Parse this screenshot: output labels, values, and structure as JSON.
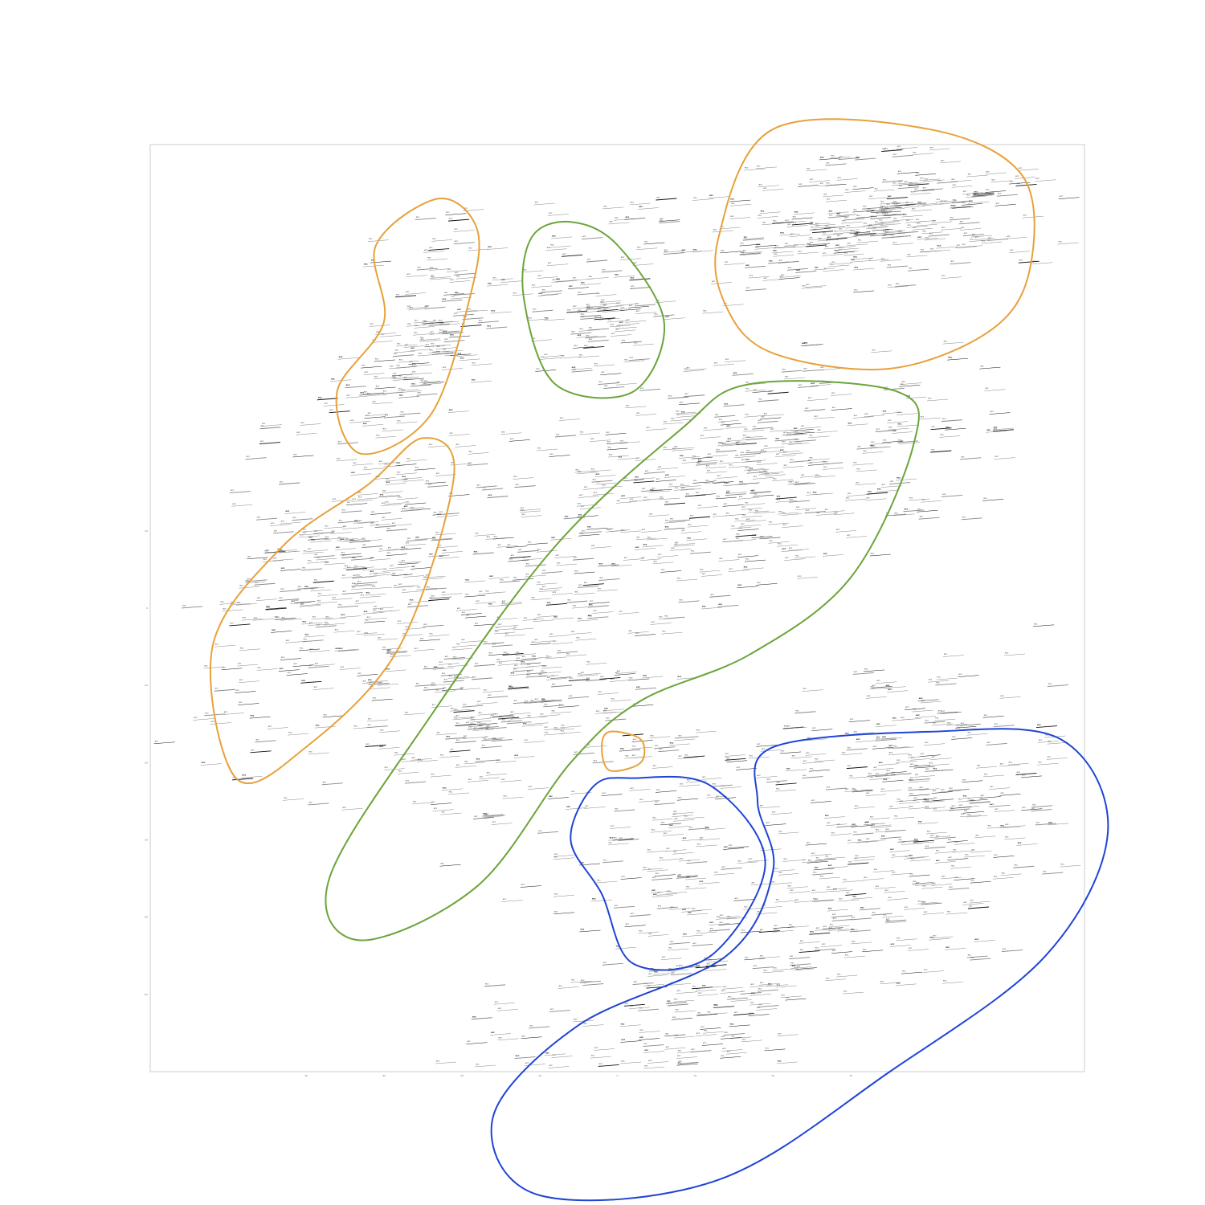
{
  "chart_data": {
    "type": "scatter",
    "title": "",
    "xlabel": "",
    "ylabel": "",
    "xlim": [
      -60,
      60
    ],
    "ylim": [
      -60,
      60
    ],
    "x_ticks": [
      -40,
      -30,
      -20,
      -10,
      0,
      10,
      20,
      30
    ],
    "y_ticks": [
      -50,
      -40,
      -30,
      -20,
      -10,
      0,
      10
    ],
    "grid": false,
    "point_label": "ecc",
    "colors": {
      "orange": "#e8a13a",
      "green": "#6aa53a",
      "blue": "#1f44d6",
      "frame": "#cccccc",
      "text": "#333333"
    },
    "clusters": [
      {
        "color": "orange",
        "cx": 32,
        "cy": 50,
        "sx": 12,
        "sy": 4,
        "angle": 8,
        "n": 260
      },
      {
        "color": "orange",
        "cx": -26,
        "cy": 36,
        "sx": 4,
        "sy": 8,
        "angle": -15,
        "n": 110
      },
      {
        "color": "green",
        "cx": -4,
        "cy": 39,
        "sx": 5,
        "sy": 6,
        "angle": 0,
        "n": 100
      },
      {
        "color": "orange",
        "cx": -35,
        "cy": 5,
        "sx": 8,
        "sy": 14,
        "angle": -25,
        "n": 300
      },
      {
        "color": "green",
        "cx": 18,
        "cy": 17,
        "sx": 14,
        "sy": 7,
        "angle": 12,
        "n": 320
      },
      {
        "color": "green",
        "cx": -14,
        "cy": -8,
        "sx": 7,
        "sy": 12,
        "angle": -30,
        "n": 260
      },
      {
        "color": "orange",
        "cx": 1,
        "cy": -18,
        "sx": 1,
        "sy": 1,
        "angle": 0,
        "n": 4
      },
      {
        "color": "blue",
        "cx": 5,
        "cy": -29,
        "sx": 6,
        "sy": 9,
        "angle": 0,
        "n": 100
      },
      {
        "color": "blue",
        "cx": 38,
        "cy": -27,
        "sx": 11,
        "sy": 9,
        "angle": 15,
        "n": 300
      },
      {
        "color": "blue",
        "cx": 5,
        "cy": -54,
        "sx": 18,
        "sy": 7,
        "angle": 30,
        "n": 240
      }
    ],
    "outlines": [
      {
        "color": "orange",
        "path": [
          [
            20,
            62
          ],
          [
            40,
            62
          ],
          [
            52,
            56
          ],
          [
            53,
            44
          ],
          [
            48,
            36
          ],
          [
            35,
            31
          ],
          [
            20,
            33
          ],
          [
            14,
            39
          ],
          [
            13,
            48
          ]
        ]
      },
      {
        "color": "orange",
        "path": [
          [
            -23,
            53
          ],
          [
            -18,
            49
          ],
          [
            -19,
            40
          ],
          [
            -24,
            25
          ],
          [
            -33,
            20
          ],
          [
            -36,
            28
          ],
          [
            -30,
            37
          ],
          [
            -31,
            47
          ]
        ]
      },
      {
        "color": "green",
        "path": [
          [
            -6,
            50
          ],
          [
            0,
            47
          ],
          [
            6,
            37
          ],
          [
            2,
            28
          ],
          [
            -8,
            29
          ],
          [
            -12,
            40
          ],
          [
            -11,
            48
          ]
        ]
      },
      {
        "color": "orange",
        "path": [
          [
            -25,
            22
          ],
          [
            -21,
            17
          ],
          [
            -28,
            -5
          ],
          [
            -40,
            -18
          ],
          [
            -49,
            -22
          ],
          [
            -52,
            -5
          ],
          [
            -43,
            8
          ],
          [
            -32,
            16
          ]
        ]
      },
      {
        "color": "green",
        "path": [
          [
            17,
            29
          ],
          [
            36,
            28
          ],
          [
            38,
            21
          ],
          [
            30,
            4
          ],
          [
            17,
            -6
          ],
          [
            3,
            -12
          ],
          [
            -6,
            -20
          ],
          [
            -18,
            -36
          ],
          [
            -33,
            -43
          ],
          [
            -37,
            -35
          ],
          [
            -24,
            -14
          ],
          [
            -8,
            8
          ],
          [
            8,
            23
          ]
        ]
      },
      {
        "color": "orange",
        "path": [
          [
            -1,
            -16
          ],
          [
            3,
            -17
          ],
          [
            3,
            -20
          ],
          [
            -1,
            -21
          ],
          [
            -2,
            -18
          ]
        ]
      },
      {
        "color": "blue",
        "path": [
          [
            2,
            -22
          ],
          [
            12,
            -23
          ],
          [
            19,
            -33
          ],
          [
            12,
            -45
          ],
          [
            2,
            -46
          ],
          [
            -2,
            -37
          ],
          [
            -6,
            -30
          ],
          [
            -3,
            -23
          ]
        ]
      },
      {
        "color": "blue",
        "path": [
          [
            20,
            -18
          ],
          [
            40,
            -16
          ],
          [
            57,
            -17
          ],
          [
            63,
            -29
          ],
          [
            55,
            -45
          ],
          [
            35,
            -60
          ],
          [
            13,
            -74
          ],
          [
            -10,
            -76
          ],
          [
            -16,
            -66
          ],
          [
            -5,
            -54
          ],
          [
            14,
            -45
          ],
          [
            20,
            -34
          ],
          [
            18,
            -25
          ]
        ]
      }
    ]
  }
}
